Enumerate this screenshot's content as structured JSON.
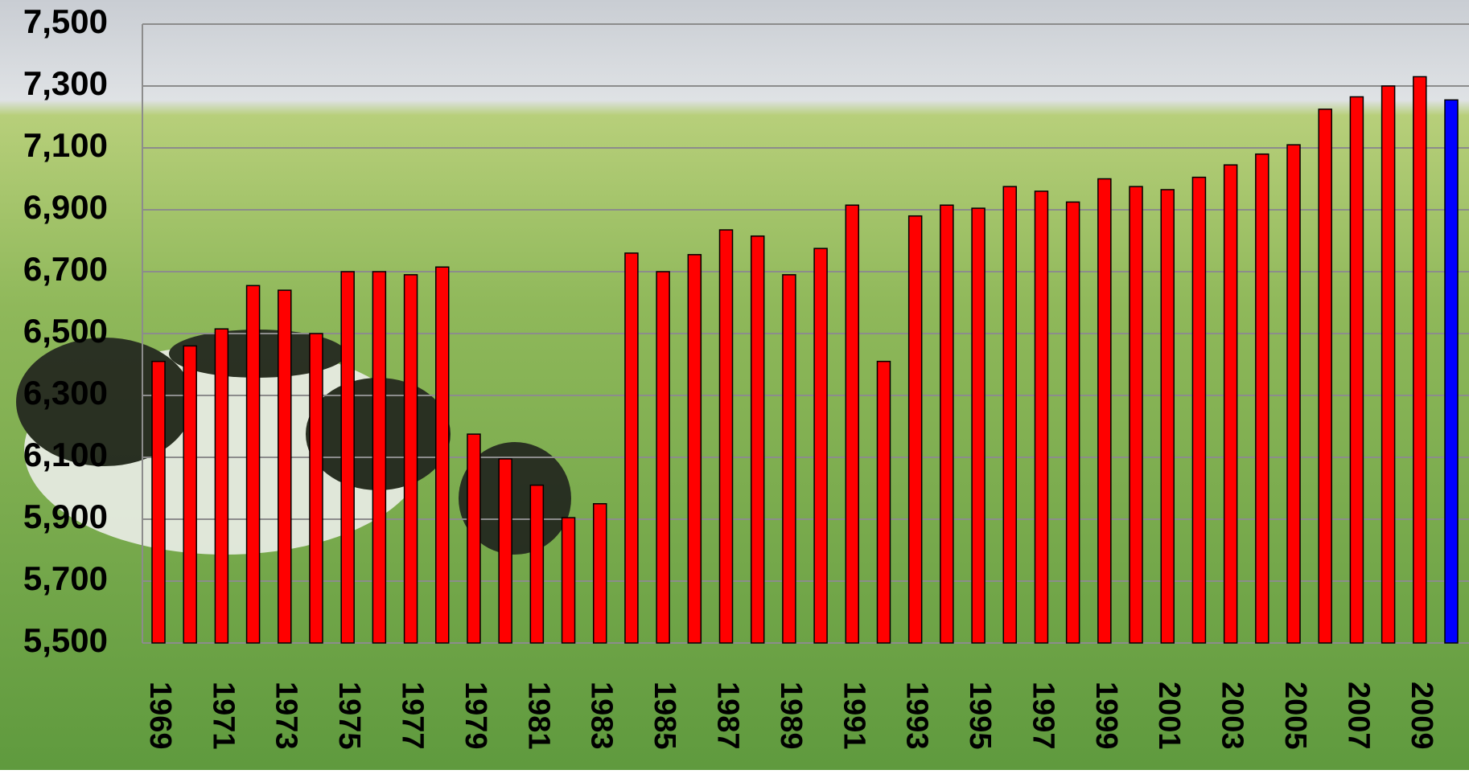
{
  "chart_data": {
    "type": "bar",
    "categories": [
      "1969",
      null,
      "1971",
      null,
      "1973",
      null,
      "1975",
      null,
      "1977",
      null,
      "1979",
      null,
      "1981",
      null,
      "1983",
      null,
      "1985",
      null,
      "1987",
      null,
      "1989",
      null,
      "1991",
      null,
      "1993",
      null,
      "1995",
      null,
      "1997",
      null,
      "1999",
      null,
      "2001",
      null,
      "2003",
      null,
      "2005",
      null,
      "2007",
      null,
      "2009",
      null
    ],
    "values": [
      6410,
      6460,
      6515,
      6655,
      6640,
      6500,
      6700,
      6700,
      6690,
      6715,
      6175,
      6095,
      6010,
      5905,
      5950,
      6760,
      6700,
      6755,
      6835,
      6815,
      6690,
      6775,
      6915,
      6410,
      6880,
      6915,
      6905,
      6975,
      6960,
      6925,
      7000,
      6975,
      6965,
      7005,
      7045,
      7080,
      7110,
      7225,
      7265,
      7300,
      7330,
      7255
    ],
    "colors": [
      "#ff0000",
      "#ff0000",
      "#ff0000",
      "#ff0000",
      "#ff0000",
      "#ff0000",
      "#ff0000",
      "#ff0000",
      "#ff0000",
      "#ff0000",
      "#ff0000",
      "#ff0000",
      "#ff0000",
      "#ff0000",
      "#ff0000",
      "#ff0000",
      "#ff0000",
      "#ff0000",
      "#ff0000",
      "#ff0000",
      "#ff0000",
      "#ff0000",
      "#ff0000",
      "#ff0000",
      "#ff0000",
      "#ff0000",
      "#ff0000",
      "#ff0000",
      "#ff0000",
      "#ff0000",
      "#ff0000",
      "#ff0000",
      "#ff0000",
      "#ff0000",
      "#ff0000",
      "#ff0000",
      "#ff0000",
      "#ff0000",
      "#ff0000",
      "#ff0000",
      "#ff0000",
      "#0000ff"
    ],
    "ylim": [
      5500,
      7500
    ],
    "yticks": [
      {
        "value": 5500,
        "label": "5,500"
      },
      {
        "value": 5700,
        "label": "5,700"
      },
      {
        "value": 5900,
        "label": "5,900"
      },
      {
        "value": 6100,
        "label": "6,100"
      },
      {
        "value": 6300,
        "label": "6,300"
      },
      {
        "value": 6500,
        "label": "6,500"
      },
      {
        "value": 6700,
        "label": "6,700"
      },
      {
        "value": 6900,
        "label": "6,900"
      },
      {
        "value": 7100,
        "label": "7,100"
      },
      {
        "value": 7300,
        "label": "7,300"
      },
      {
        "value": 7500,
        "label": "7,500"
      }
    ],
    "grid": true
  }
}
